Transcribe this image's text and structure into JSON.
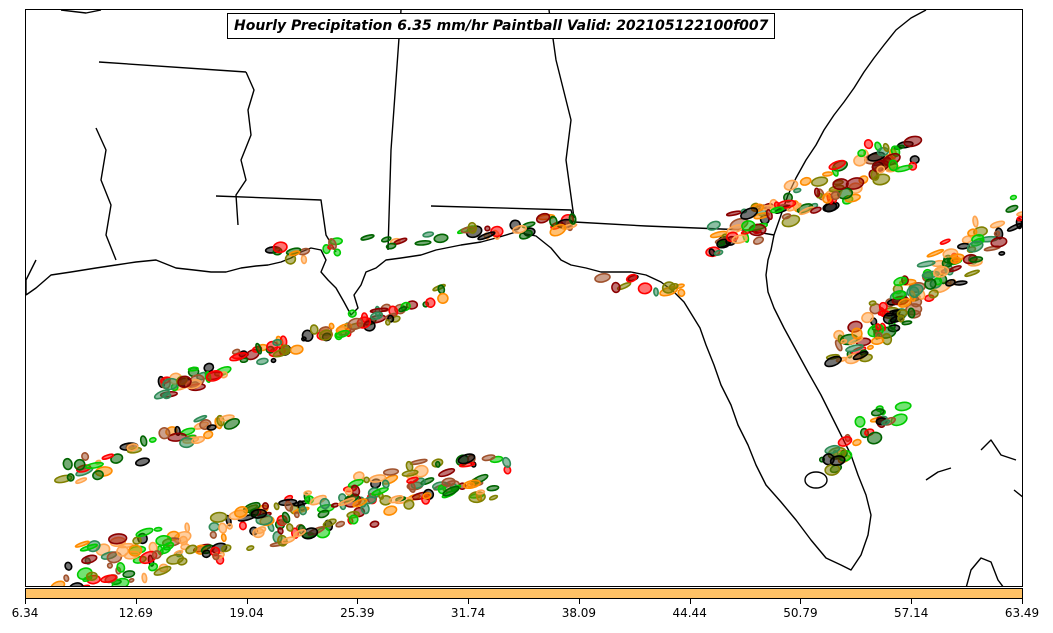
{
  "title": "Hourly Precipitation 6.35 mm/hr Paintball Valid: 202105122100f007",
  "colors": {
    "colorbar_fill": "#ffc266",
    "coastline": "#000000",
    "paintball_members": [
      "#8b0000",
      "#ff8c00",
      "#ff0000",
      "#00cc00",
      "#808000",
      "#006400",
      "#ffa54f",
      "#a0522d",
      "#000000",
      "#2e8b57"
    ]
  },
  "colorbar": {
    "ticks": [
      "6.34",
      "12.69",
      "19.04",
      "25.39",
      "31.74",
      "38.09",
      "44.44",
      "50.79",
      "57.14",
      "63.49"
    ]
  }
}
